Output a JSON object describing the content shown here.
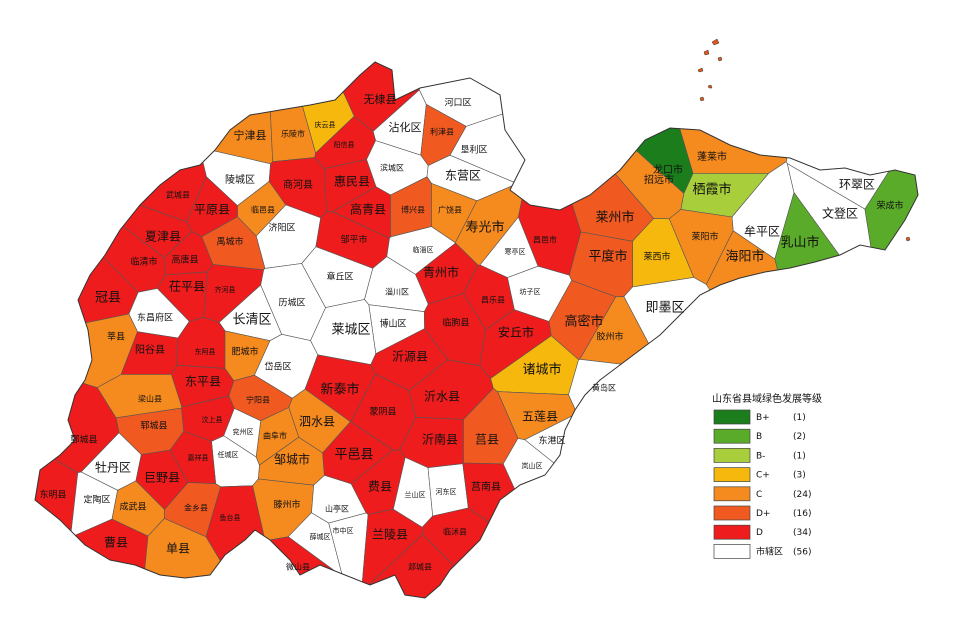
{
  "legend": {
    "title": "山东省县域绿色发展等级",
    "classes": [
      {
        "label": "B+",
        "count": "(1)",
        "color": "#1b7d1b"
      },
      {
        "label": "B",
        "count": "(2)",
        "color": "#5bab2a"
      },
      {
        "label": "B-",
        "count": "(1)",
        "color": "#a8cf3b"
      },
      {
        "label": "C+",
        "count": "(3)",
        "color": "#f6b80c"
      },
      {
        "label": "C",
        "count": "(24)",
        "color": "#f58a1f"
      },
      {
        "label": "D+",
        "count": "(16)",
        "color": "#f05a21"
      },
      {
        "label": "D",
        "count": "(34)",
        "color": "#ee1c1c"
      },
      {
        "label": "市辖区",
        "count": "(56)",
        "color": "#ffffff"
      }
    ]
  },
  "regions": [
    {
      "name": "无棣县",
      "grade": "D"
    },
    {
      "name": "沾化区",
      "grade": "市辖区"
    },
    {
      "name": "河口区",
      "grade": "市辖区"
    },
    {
      "name": "庆云县",
      "grade": "C+"
    },
    {
      "name": "利津县",
      "grade": "D+"
    },
    {
      "name": "阳信县",
      "grade": "D"
    },
    {
      "name": "垦利区",
      "grade": "市辖区"
    },
    {
      "name": "宁津县",
      "grade": "C"
    },
    {
      "name": "乐陵市",
      "grade": "C"
    },
    {
      "name": "惠民县",
      "grade": "D"
    },
    {
      "name": "滨城区",
      "grade": "市辖区"
    },
    {
      "name": "东营区",
      "grade": "市辖区"
    },
    {
      "name": "陵城区",
      "grade": "市辖区"
    },
    {
      "name": "商河县",
      "grade": "D"
    },
    {
      "name": "临邑县",
      "grade": "C"
    },
    {
      "name": "高青县",
      "grade": "D"
    },
    {
      "name": "博兴县",
      "grade": "D+"
    },
    {
      "name": "广饶县",
      "grade": "C"
    },
    {
      "name": "寿光市",
      "grade": "C"
    },
    {
      "name": "武城县",
      "grade": "D"
    },
    {
      "name": "平原县",
      "grade": "D"
    },
    {
      "name": "夏津县",
      "grade": "D"
    },
    {
      "name": "禹城市",
      "grade": "D+"
    },
    {
      "name": "济阳区",
      "grade": "市辖区"
    },
    {
      "name": "邹平市",
      "grade": "D"
    },
    {
      "name": "临淄区",
      "grade": "市辖区"
    },
    {
      "name": "寒亭区",
      "grade": "市辖区"
    },
    {
      "name": "昌邑市",
      "grade": "D"
    },
    {
      "name": "莱州市",
      "grade": "D+"
    },
    {
      "name": "招远市",
      "grade": "C"
    },
    {
      "name": "蓬莱市",
      "grade": "C"
    },
    {
      "name": "龙口市",
      "grade": "B+"
    },
    {
      "name": "栖霞市",
      "grade": "B-"
    },
    {
      "name": "牟平区",
      "grade": "市辖区"
    },
    {
      "name": "环翠区",
      "grade": "市辖区"
    },
    {
      "name": "文登区",
      "grade": "市辖区"
    },
    {
      "name": "荣成市",
      "grade": "B"
    },
    {
      "name": "乳山市",
      "grade": "B"
    },
    {
      "name": "莱阳市",
      "grade": "C"
    },
    {
      "name": "海阳市",
      "grade": "C"
    },
    {
      "name": "莱西市",
      "grade": "C+"
    },
    {
      "name": "平度市",
      "grade": "D+"
    },
    {
      "name": "即墨区",
      "grade": "市辖区"
    },
    {
      "name": "临清市",
      "grade": "D"
    },
    {
      "name": "高唐县",
      "grade": "D"
    },
    {
      "name": "冠县",
      "grade": "D"
    },
    {
      "name": "茌平县",
      "grade": "D"
    },
    {
      "name": "东昌府区",
      "grade": "市辖区"
    },
    {
      "name": "齐河县",
      "grade": "D"
    },
    {
      "name": "长清区",
      "grade": "市辖区"
    },
    {
      "name": "历城区",
      "grade": "市辖区"
    },
    {
      "name": "章丘区",
      "grade": "市辖区"
    },
    {
      "name": "淄川区",
      "grade": "市辖区"
    },
    {
      "name": "博山区",
      "grade": "市辖区"
    },
    {
      "name": "莱城区",
      "grade": "市辖区"
    },
    {
      "name": "青州市",
      "grade": "D"
    },
    {
      "name": "昌乐县",
      "grade": "D"
    },
    {
      "name": "临朐县",
      "grade": "D"
    },
    {
      "name": "安丘市",
      "grade": "D"
    },
    {
      "name": "坊子区",
      "grade": "市辖区"
    },
    {
      "name": "高密市",
      "grade": "D+"
    },
    {
      "name": "胶州市",
      "grade": "C"
    },
    {
      "name": "莘县",
      "grade": "C"
    },
    {
      "name": "阳谷县",
      "grade": "D"
    },
    {
      "name": "东阿县",
      "grade": "D"
    },
    {
      "name": "肥城市",
      "grade": "C"
    },
    {
      "name": "岱岳区",
      "grade": "市辖区"
    },
    {
      "name": "新泰市",
      "grade": "D"
    },
    {
      "name": "沂源县",
      "grade": "D"
    },
    {
      "name": "诸城市",
      "grade": "C+"
    },
    {
      "name": "黄岛区",
      "grade": "市辖区"
    },
    {
      "name": "东平县",
      "grade": "D"
    },
    {
      "name": "梁山县",
      "grade": "C"
    },
    {
      "name": "宁阳县",
      "grade": "D+"
    },
    {
      "name": "泗水县",
      "grade": "C"
    },
    {
      "name": "蒙阴县",
      "grade": "D"
    },
    {
      "name": "沂水县",
      "grade": "D"
    },
    {
      "name": "五莲县",
      "grade": "C"
    },
    {
      "name": "郓城县",
      "grade": "D+"
    },
    {
      "name": "鄄城县",
      "grade": "D"
    },
    {
      "name": "汶上县",
      "grade": "D"
    },
    {
      "name": "曲阜市",
      "grade": "C"
    },
    {
      "name": "兖州区",
      "grade": "市辖区"
    },
    {
      "name": "邹城市",
      "grade": "C"
    },
    {
      "name": "沂南县",
      "grade": "D"
    },
    {
      "name": "莒县",
      "grade": "D+"
    },
    {
      "name": "东港区",
      "grade": "市辖区"
    },
    {
      "name": "任城区",
      "grade": "市辖区"
    },
    {
      "name": "嘉祥县",
      "grade": "D"
    },
    {
      "name": "平邑县",
      "grade": "D"
    },
    {
      "name": "牡丹区",
      "grade": "市辖区"
    },
    {
      "name": "巨野县",
      "grade": "D"
    },
    {
      "name": "东明县",
      "grade": "D"
    },
    {
      "name": "定陶区",
      "grade": "市辖区"
    },
    {
      "name": "成武县",
      "grade": "C"
    },
    {
      "name": "金乡县",
      "grade": "D+"
    },
    {
      "name": "鱼台县",
      "grade": "D"
    },
    {
      "name": "滕州市",
      "grade": "C"
    },
    {
      "name": "山亭区",
      "grade": "市辖区"
    },
    {
      "name": "费县",
      "grade": "D"
    },
    {
      "name": "兰山区",
      "grade": "市辖区"
    },
    {
      "name": "河东区",
      "grade": "市辖区"
    },
    {
      "name": "莒南县",
      "grade": "D"
    },
    {
      "name": "岚山区",
      "grade": "市辖区"
    },
    {
      "name": "薛城区",
      "grade": "市辖区"
    },
    {
      "name": "市中区",
      "grade": "市辖区"
    },
    {
      "name": "兰陵县",
      "grade": "D"
    },
    {
      "name": "临沭县",
      "grade": "D"
    },
    {
      "name": "曹县",
      "grade": "D"
    },
    {
      "name": "单县",
      "grade": "C"
    },
    {
      "name": "微山县",
      "grade": "D"
    },
    {
      "name": "郯城县",
      "grade": "D"
    }
  ]
}
